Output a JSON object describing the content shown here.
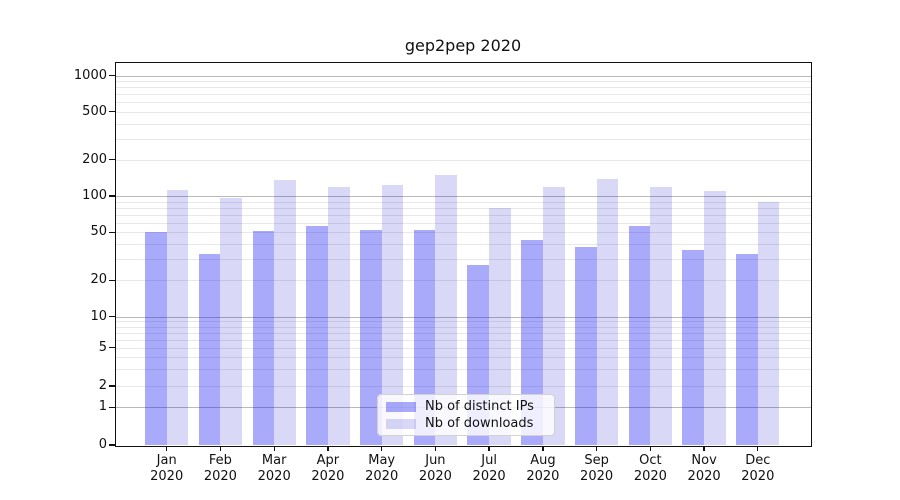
{
  "chart_data": {
    "type": "bar",
    "title": "gep2pep 2020",
    "categories": [
      "Jan 2020",
      "Feb 2020",
      "Mar 2020",
      "Apr 2020",
      "May 2020",
      "Jun 2020",
      "Jul 2020",
      "Aug 2020",
      "Sep 2020",
      "Oct 2020",
      "Nov 2020",
      "Dec 2020"
    ],
    "series": [
      {
        "name": "Nb of distinct IPs",
        "values": [
          50,
          33,
          51,
          56,
          52,
          52,
          27,
          43,
          38,
          56,
          36,
          33
        ]
      },
      {
        "name": "Nb of downloads",
        "values": [
          112,
          97,
          137,
          120,
          123,
          149,
          79,
          119,
          138,
          119,
          111,
          90
        ]
      }
    ],
    "xlabel": "",
    "ylabel": "",
    "yscale": "log-like (symlog, linear below 1, includes 0)",
    "y_ticks": [
      1000,
      500,
      200,
      100,
      50,
      20,
      10,
      5,
      2,
      1,
      0
    ],
    "ylim": [
      0,
      1300
    ],
    "grid": "both (major decades darker, minor lighter)",
    "legend_position": "lower center",
    "colors": {
      "bar_distinct_ips": "rgba(5,5,240,0.34)",
      "bar_downloads": "rgba(0,0,202,0.15)",
      "grid_major": "#b9b9b9",
      "grid_minor": "#e8e8e8",
      "spine": "#111111",
      "text": "#111111"
    }
  }
}
